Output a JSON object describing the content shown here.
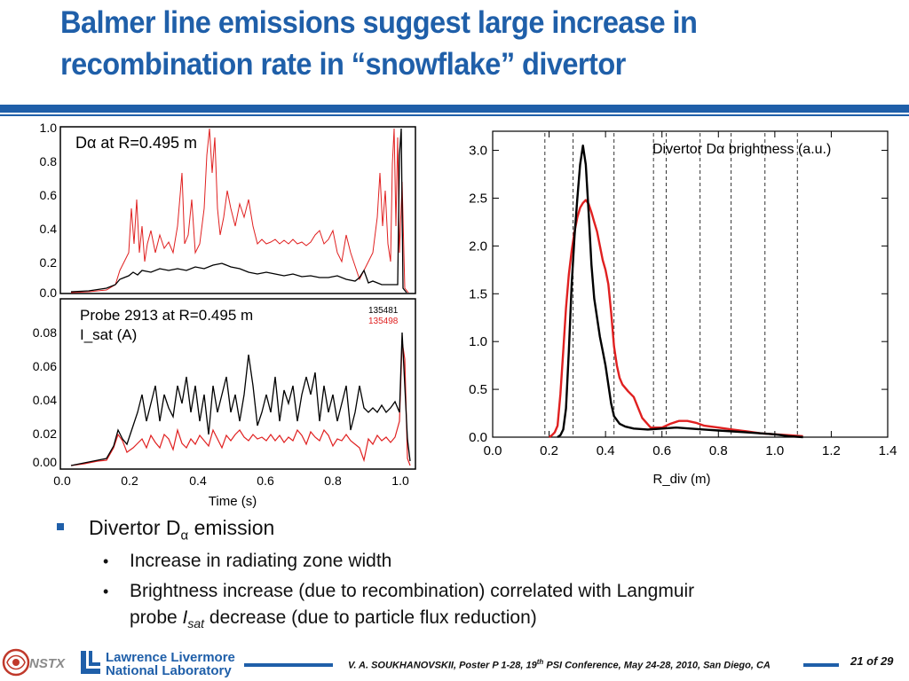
{
  "slide": {
    "title_line1": "Balmer line emissions suggest large increase in",
    "title_line2": "recombination rate in “snowflake” divertor"
  },
  "left_top_panel": {
    "label": "Dα at R=0.495 m",
    "yticks": [
      "1.0",
      "0.8",
      "0.6",
      "0.4",
      "0.2",
      "0.0"
    ]
  },
  "left_bottom_panel": {
    "label_line1": "Probe 2913 at R=0.495 m",
    "label_line2": "I_sat (A)",
    "legend": [
      "135481",
      "135498"
    ],
    "yticks": [
      "0.08",
      "0.06",
      "0.04",
      "0.02",
      "0.00"
    ],
    "xticks": [
      "0.0",
      "0.2",
      "0.4",
      "0.6",
      "0.8",
      "1.0"
    ],
    "xlabel": "Time (s)"
  },
  "chart_data": {
    "type": "line",
    "title": "Divertor Dα brightness (a.u.)",
    "xlabel": "R_div (m)",
    "ylabel": "",
    "xlim": [
      0.0,
      1.4
    ],
    "ylim": [
      0.0,
      3.2
    ],
    "xticks": [
      "0.0",
      "0.2",
      "0.4",
      "0.6",
      "0.8",
      "1.0",
      "1.2",
      "1.4"
    ],
    "yticks": [
      "0.0",
      "0.5",
      "1.0",
      "1.5",
      "2.0",
      "2.5",
      "3.0"
    ],
    "vlines": [
      0.185,
      0.285,
      0.43,
      0.57,
      0.615,
      0.735,
      0.845,
      0.965,
      1.08
    ],
    "series": [
      {
        "color": "#000000",
        "x": [
          0.23,
          0.24,
          0.25,
          0.26,
          0.27,
          0.28,
          0.29,
          0.3,
          0.31,
          0.32,
          0.33,
          0.34,
          0.35,
          0.36,
          0.37,
          0.38,
          0.39,
          0.4,
          0.41,
          0.42,
          0.43,
          0.45,
          0.47,
          0.5,
          0.55,
          0.6,
          0.65,
          0.7,
          0.75,
          0.8,
          0.85,
          0.9,
          0.95,
          1.0,
          1.05,
          1.1
        ],
        "y": [
          0.0,
          0.02,
          0.08,
          0.3,
          0.9,
          1.6,
          2.1,
          2.5,
          2.85,
          3.05,
          2.85,
          2.35,
          1.8,
          1.45,
          1.25,
          1.05,
          0.9,
          0.75,
          0.55,
          0.35,
          0.22,
          0.14,
          0.11,
          0.09,
          0.08,
          0.09,
          0.1,
          0.09,
          0.08,
          0.07,
          0.06,
          0.05,
          0.04,
          0.03,
          0.01,
          0.0
        ]
      },
      {
        "color": "#e02020",
        "x": [
          0.2,
          0.21,
          0.22,
          0.23,
          0.24,
          0.25,
          0.26,
          0.27,
          0.28,
          0.29,
          0.3,
          0.31,
          0.32,
          0.33,
          0.34,
          0.35,
          0.36,
          0.37,
          0.38,
          0.39,
          0.4,
          0.41,
          0.42,
          0.43,
          0.44,
          0.45,
          0.46,
          0.48,
          0.5,
          0.53,
          0.56,
          0.6,
          0.63,
          0.66,
          0.69,
          0.72,
          0.75,
          0.8,
          0.85,
          0.9,
          0.95,
          1.0,
          1.05,
          1.1
        ],
        "y": [
          0.0,
          0.02,
          0.05,
          0.12,
          0.45,
          0.9,
          1.35,
          1.7,
          1.95,
          2.15,
          2.3,
          2.4,
          2.45,
          2.48,
          2.44,
          2.35,
          2.25,
          2.15,
          2.0,
          1.85,
          1.75,
          1.6,
          1.3,
          0.95,
          0.75,
          0.62,
          0.55,
          0.48,
          0.42,
          0.2,
          0.1,
          0.1,
          0.14,
          0.17,
          0.17,
          0.15,
          0.12,
          0.1,
          0.08,
          0.06,
          0.04,
          0.03,
          0.02,
          0.01
        ]
      }
    ]
  },
  "bullets": {
    "main": "Divertor D",
    "main_sub": "α",
    "main_tail": " emission",
    "sub1": "Increase in radiating zone width",
    "sub2_a": "Brightness increase (due to recombination) correlated with Langmuir",
    "sub2_b": "probe ",
    "sub2_i": "I",
    "sub2_sub": "sat",
    "sub2_c": " decrease (due to particle flux reduction)"
  },
  "footer": {
    "nstx": "NSTX",
    "lab_line1": "Lawrence Livermore",
    "lab_line2": "National Laboratory",
    "citation_a": "V. A. SOUKHANOVSKII, Poster P 1-28, 19",
    "citation_sup": "th",
    "citation_b": " PSI Conference, May 24-28, 2010, San Diego, CA",
    "page": "21 of 29"
  },
  "colors": {
    "brand_blue": "#1f5fa9",
    "red_series": "#e02020",
    "black_series": "#000000"
  }
}
